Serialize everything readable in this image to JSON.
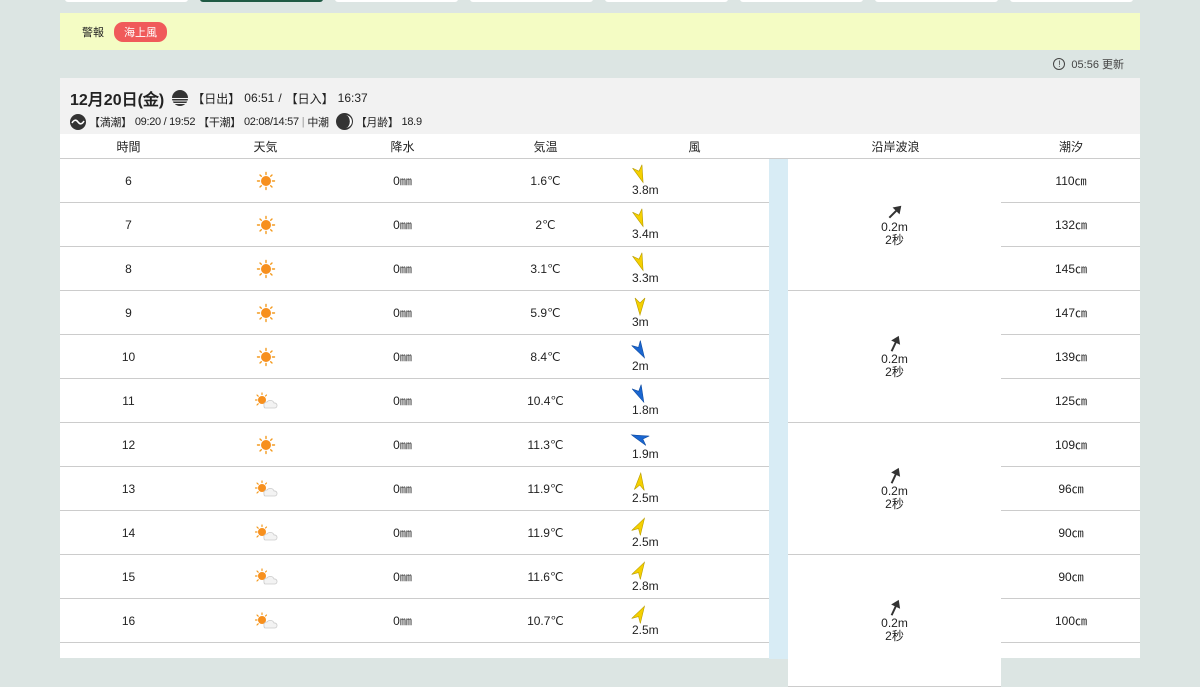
{
  "tabs": 8,
  "alert": {
    "label": "警報",
    "badge": "海上風",
    "badge_color": "#f05a5a"
  },
  "updated": "05:56 更新",
  "day": {
    "date": "12月20日(金)",
    "sunrise_label": "【日出】",
    "sunrise": "06:51",
    "sep": "/",
    "sunset_label": "【日入】",
    "sunset": "16:37",
    "high_label": "【満潮】",
    "high": "09:20 / 19:52",
    "low_label": "【干潮】",
    "low": "02:08/14:57",
    "tide_type": "中潮",
    "moon_label": "【月齢】",
    "moon": "18.9"
  },
  "headers": [
    "時間",
    "天気",
    "降水",
    "気温",
    "風",
    "沿岸波浪",
    "潮汐"
  ],
  "rows": [
    {
      "hour": "6",
      "weather": "sunny",
      "precip": "0㎜",
      "temp": "1.6℃",
      "wind": "3.8m",
      "wind_dir_deg": 160,
      "wind_color": "#f5d000",
      "tide": "110㎝"
    },
    {
      "hour": "7",
      "weather": "sunny",
      "precip": "0㎜",
      "temp": "2℃",
      "wind": "3.4m",
      "wind_dir_deg": 160,
      "wind_color": "#f5d000",
      "tide": "132㎝"
    },
    {
      "hour": "8",
      "weather": "sunny",
      "precip": "0㎜",
      "temp": "3.1℃",
      "wind": "3.3m",
      "wind_dir_deg": 160,
      "wind_color": "#f5d000",
      "tide": "145㎝"
    },
    {
      "hour": "9",
      "weather": "sunny",
      "precip": "0㎜",
      "temp": "5.9℃",
      "wind": "3m",
      "wind_dir_deg": 180,
      "wind_color": "#f5d000",
      "tide": "147㎝"
    },
    {
      "hour": "10",
      "weather": "sunny",
      "precip": "0㎜",
      "temp": "8.4℃",
      "wind": "2m",
      "wind_dir_deg": 150,
      "wind_color": "#1a66d0",
      "tide": "139㎝"
    },
    {
      "hour": "11",
      "weather": "sunny-cloudy",
      "precip": "0㎜",
      "temp": "10.4℃",
      "wind": "1.8m",
      "wind_dir_deg": 155,
      "wind_color": "#1a66d0",
      "tide": "125㎝"
    },
    {
      "hour": "12",
      "weather": "sunny",
      "precip": "0㎜",
      "temp": "11.3℃",
      "wind": "1.9m",
      "wind_dir_deg": 290,
      "wind_color": "#1a66d0",
      "tide": "109㎝"
    },
    {
      "hour": "13",
      "weather": "sunny-cloudy",
      "precip": "0㎜",
      "temp": "11.9℃",
      "wind": "2.5m",
      "wind_dir_deg": 5,
      "wind_color": "#f5d000",
      "tide": "96㎝"
    },
    {
      "hour": "14",
      "weather": "sunny-cloudy",
      "precip": "0㎜",
      "temp": "11.9℃",
      "wind": "2.5m",
      "wind_dir_deg": 30,
      "wind_color": "#f5d000",
      "tide": "90㎝"
    },
    {
      "hour": "15",
      "weather": "sunny-cloudy",
      "precip": "0㎜",
      "temp": "11.6℃",
      "wind": "2.8m",
      "wind_dir_deg": 30,
      "wind_color": "#f5d000",
      "tide": "90㎝"
    },
    {
      "hour": "16",
      "weather": "sunny-cloudy",
      "precip": "0㎜",
      "temp": "10.7℃",
      "wind": "2.5m",
      "wind_dir_deg": 30,
      "wind_color": "#f5d000",
      "tide": "100㎝"
    }
  ],
  "waves": [
    {
      "height": "0.2m",
      "period": "2秒",
      "dir_deg": 45
    },
    {
      "height": "0.2m",
      "period": "2秒",
      "dir_deg": 25
    },
    {
      "height": "0.2m",
      "period": "2秒",
      "dir_deg": 25
    },
    {
      "height": "0.2m",
      "period": "2秒",
      "dir_deg": 25
    }
  ]
}
